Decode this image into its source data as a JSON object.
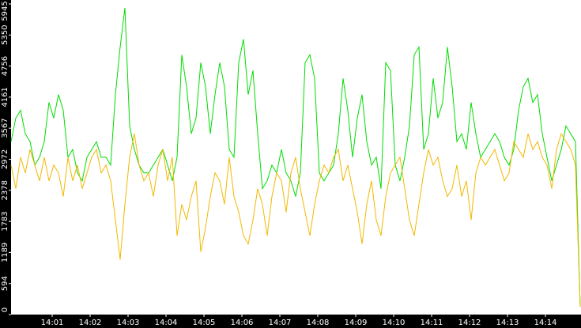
{
  "chart_data": {
    "type": "line",
    "xlim": [
      0,
      120
    ],
    "xticks": [
      {
        "value": 8.67,
        "label": "14:01"
      },
      {
        "value": 16.67,
        "label": "14:02"
      },
      {
        "value": 24.67,
        "label": "14:03"
      },
      {
        "value": 32.67,
        "label": "14:04"
      },
      {
        "value": 40.67,
        "label": "14:05"
      },
      {
        "value": 48.67,
        "label": "14:06"
      },
      {
        "value": 56.67,
        "label": "14:07"
      },
      {
        "value": 64.67,
        "label": "14:08"
      },
      {
        "value": 72.67,
        "label": "14:09"
      },
      {
        "value": 80.67,
        "label": "14:10"
      },
      {
        "value": 88.67,
        "label": "14:11"
      },
      {
        "value": 96.67,
        "label": "14:12"
      },
      {
        "value": 104.67,
        "label": "14:13"
      },
      {
        "value": 112.67,
        "label": "14:14"
      }
    ],
    "ylim": [
      0,
      6020
    ],
    "yticks": [
      0,
      594,
      1189,
      1783,
      2378,
      2972,
      3567,
      4161,
      4756,
      5350,
      5945
    ],
    "series": [
      {
        "color": "#00dd00",
        "values": [
          3310,
          3760,
          3910,
          3460,
          3310,
          2860,
          3010,
          3310,
          4060,
          3760,
          4210,
          3910,
          3010,
          3160,
          2710,
          2560,
          3010,
          3160,
          3310,
          3010,
          3010,
          2860,
          4210,
          5120,
          5870,
          3610,
          3160,
          2860,
          2710,
          2710,
          2860,
          3010,
          3160,
          2860,
          2560,
          3010,
          4970,
          4360,
          3460,
          3760,
          4820,
          4360,
          3460,
          4210,
          4820,
          4360,
          3160,
          3010,
          4820,
          5270,
          4210,
          4670,
          3460,
          2410,
          2560,
          2860,
          2710,
          3160,
          2710,
          2560,
          2260,
          2710,
          4820,
          4970,
          4520,
          2710,
          2560,
          2710,
          2860,
          3460,
          4520,
          3910,
          3010,
          3760,
          4210,
          3310,
          2860,
          3010,
          2410,
          4820,
          4670,
          2860,
          2560,
          3010,
          3610,
          4970,
          5120,
          3160,
          3460,
          4520,
          3760,
          4060,
          5120,
          4360,
          3310,
          3460,
          3160,
          4060,
          3460,
          3010,
          3160,
          3310,
          3460,
          3310,
          3010,
          2860,
          3160,
          3910,
          4360,
          4520,
          4060,
          4210,
          3460,
          3010,
          2560,
          2860,
          3160,
          3610,
          3460,
          3310,
          150
        ]
      },
      {
        "color": "#f2b800",
        "values": [
          2860,
          2410,
          3010,
          2710,
          3160,
          2860,
          2560,
          3010,
          2560,
          2860,
          2710,
          2260,
          3010,
          2560,
          2860,
          2410,
          2710,
          3010,
          3160,
          2710,
          2860,
          2560,
          1810,
          1050,
          2110,
          3010,
          3460,
          2860,
          2560,
          2710,
          2260,
          2860,
          3160,
          2560,
          3010,
          1510,
          2110,
          1810,
          2260,
          2560,
          1200,
          1660,
          2260,
          2710,
          2560,
          2110,
          3010,
          2260,
          1960,
          1510,
          1350,
          1810,
          2410,
          2110,
          1510,
          2260,
          2710,
          2560,
          1960,
          2710,
          3010,
          2410,
          1960,
          1510,
          2110,
          2560,
          2860,
          2710,
          3010,
          3160,
          2560,
          2860,
          2410,
          1960,
          1350,
          2110,
          2560,
          1810,
          1510,
          2260,
          2710,
          2860,
          3010,
          2410,
          1810,
          1510,
          2110,
          2710,
          3160,
          2860,
          3010,
          2560,
          2260,
          2410,
          2860,
          2260,
          2560,
          1810,
          2710,
          3010,
          2860,
          3010,
          3160,
          2860,
          2560,
          2710,
          3310,
          3160,
          3010,
          3460,
          3160,
          3310,
          3010,
          2860,
          2410,
          3160,
          3460,
          3310,
          3160,
          2860,
          150
        ]
      }
    ]
  }
}
